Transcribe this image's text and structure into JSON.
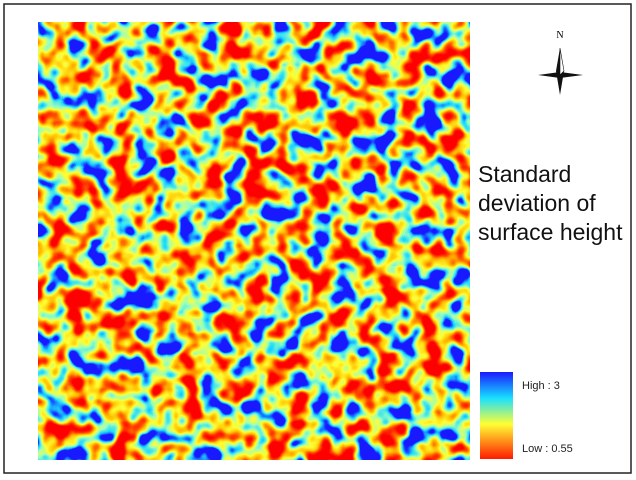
{
  "map": {
    "north_label": "N",
    "title": "Standard deviation of surface height",
    "legend": {
      "high_label": "High : 3",
      "low_label": "Low : 0.55"
    }
  }
}
